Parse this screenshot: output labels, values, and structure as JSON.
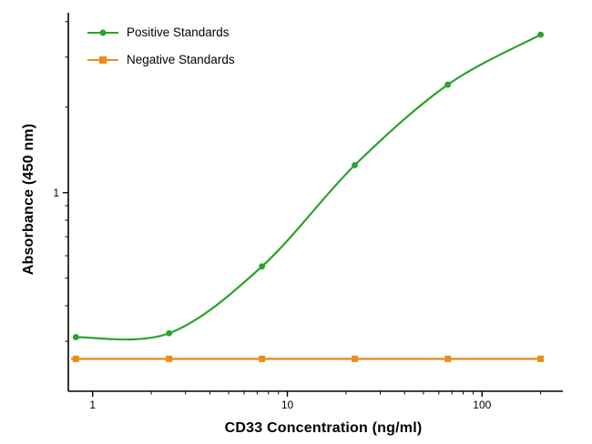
{
  "chart_data": {
    "type": "line",
    "title": "",
    "xlabel": "CD33 Concentration (ng/ml)",
    "ylabel": "Absorbance (450 nm)",
    "x_scale": "log",
    "y_scale": "log",
    "xlim": [
      0.75,
      260
    ],
    "ylim": [
      0.2,
      4.3
    ],
    "x_major_ticks": [
      1,
      10,
      100
    ],
    "x_minor_ticks": [
      2,
      3,
      4,
      5,
      6,
      7,
      8,
      9,
      20,
      30,
      40,
      50,
      60,
      70,
      80,
      90,
      200
    ],
    "y_major_ticks": [
      1
    ],
    "y_minor_ticks": [
      0.3,
      0.4,
      0.5,
      0.6,
      0.7,
      0.8,
      0.9,
      2,
      3,
      4
    ],
    "x": [
      0.82,
      2.47,
      7.41,
      22.2,
      66.7,
      200
    ],
    "series": [
      {
        "name": "Positive Standards",
        "color": "#29a329",
        "marker": "circle",
        "values": [
          0.31,
          0.32,
          0.55,
          1.25,
          2.4,
          3.6
        ]
      },
      {
        "name": "Negative Standards",
        "color": "#ef8a1d",
        "marker": "square",
        "values": [
          0.26,
          0.26,
          0.26,
          0.26,
          0.26,
          0.26
        ]
      }
    ],
    "legend_position": "top-left",
    "axis_color": "#000000",
    "grid": false
  }
}
